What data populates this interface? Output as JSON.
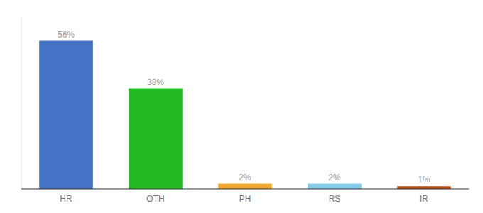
{
  "chart_data": {
    "type": "bar",
    "categories": [
      "HR",
      "OTH",
      "PH",
      "RS",
      "IR"
    ],
    "values": [
      56,
      38,
      2,
      2,
      1
    ],
    "value_labels": [
      "56%",
      "38%",
      "2%",
      "2%",
      "1%"
    ],
    "colors": [
      "#4472c4",
      "#22bb22",
      "#f0a830",
      "#88ccee",
      "#b84c10"
    ],
    "ylim": [
      0,
      65
    ],
    "grid": false,
    "data_labels": true,
    "tick_labels": "x"
  }
}
